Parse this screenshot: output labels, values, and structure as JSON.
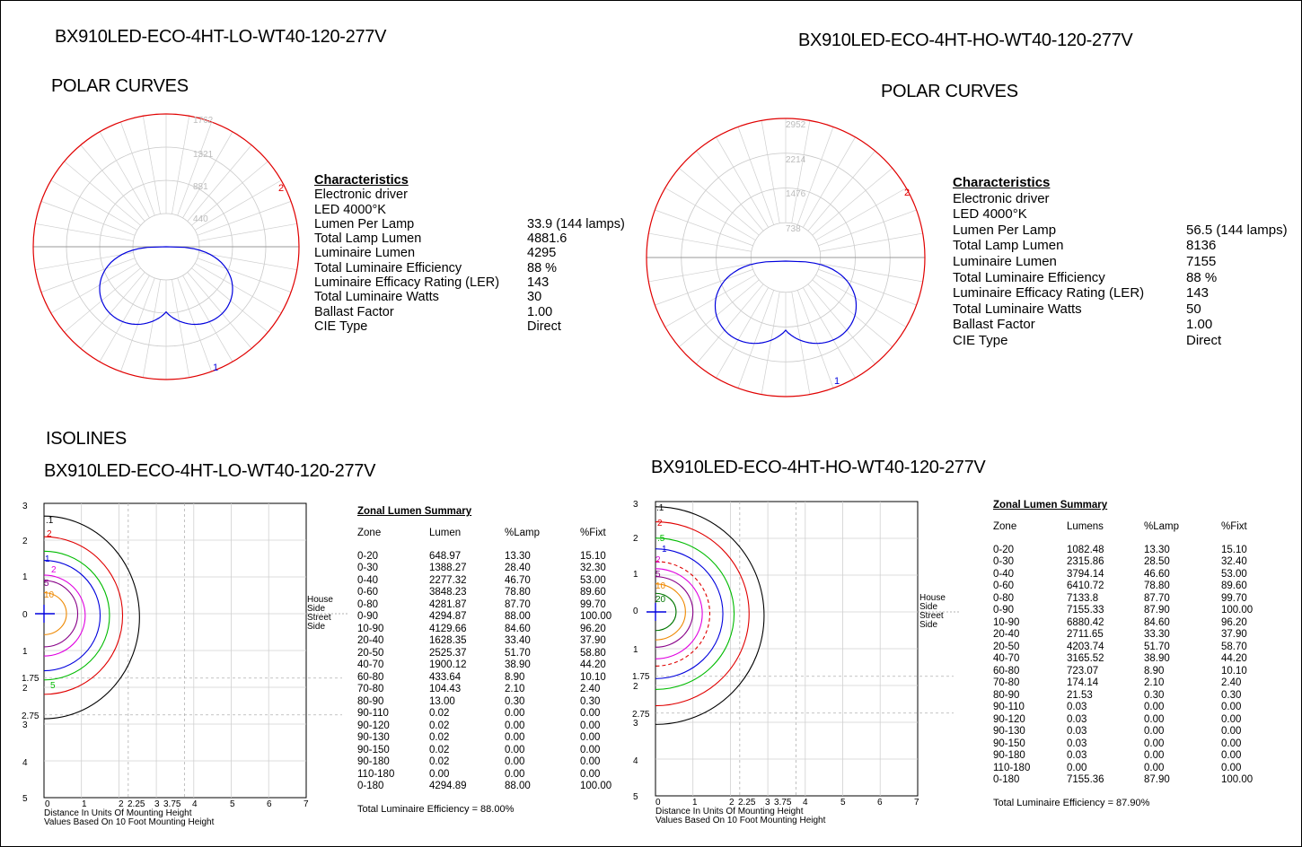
{
  "left": {
    "model": "BX910LED-ECO-4HT-LO-WT40-120-277V",
    "polar_heading": "POLAR CURVES",
    "polar_rings": [
      "1762",
      "1321",
      "881",
      "440"
    ],
    "polar_marks": [
      "2",
      "1"
    ],
    "characteristics": {
      "title": "Characteristics",
      "lines": [
        "Electronic driver",
        "LED 4000°K"
      ],
      "rows": [
        {
          "label": "Lumen Per Lamp",
          "value": "33.9 (144 lamps)"
        },
        {
          "label": "Total Lamp Lumen",
          "value": "4881.6"
        },
        {
          "label": "Luminaire Lumen",
          "value": "4295"
        },
        {
          "label": "Total Luminaire Efficiency",
          "value": "88 %"
        },
        {
          "label": "Luminaire Efficacy Rating (LER)",
          "value": "143"
        },
        {
          "label": "Total Luminaire Watts",
          "value": "30"
        },
        {
          "label": "Ballast Factor",
          "value": "1.00"
        },
        {
          "label": "CIE Type",
          "value": "Direct"
        }
      ]
    },
    "isolines_heading": "ISOLINES",
    "iso_model": "BX910LED-ECO-4HT-LO-WT40-120-277V",
    "iso_y_labels": [
      "3",
      "2",
      "1",
      "0",
      "1",
      "2",
      "3",
      "4",
      "5"
    ],
    "iso_y_extra": [
      "1.75",
      "2.75"
    ],
    "iso_x_labels": [
      "0",
      "1",
      "2",
      "2.25",
      "3",
      "3.75",
      "4",
      "5",
      "6",
      "7"
    ],
    "iso_contour_labels": [
      ".1",
      "2",
      "1",
      "2",
      "5",
      "10",
      "5"
    ],
    "iso_side": [
      "House",
      "Side",
      "Street",
      "Side"
    ],
    "iso_footer": [
      "Distance In Units Of Mounting Height",
      "Values Based On 10 Foot Mounting Height"
    ],
    "zonal": {
      "title": "Zonal Lumen Summary",
      "headers": [
        "Zone",
        "Lumen",
        "%Lamp",
        "%Fixt"
      ],
      "rows": [
        [
          "0-20",
          "648.97",
          "13.30",
          "15.10"
        ],
        [
          "0-30",
          "1388.27",
          "28.40",
          "32.30"
        ],
        [
          "0-40",
          "2277.32",
          "46.70",
          "53.00"
        ],
        [
          "0-60",
          "3848.23",
          "78.80",
          "89.60"
        ],
        [
          "0-80",
          "4281.87",
          "87.70",
          "99.70"
        ],
        [
          "0-90",
          "4294.87",
          "88.00",
          "100.00"
        ],
        [
          "10-90",
          "4129.66",
          "84.60",
          "96.20"
        ],
        [
          "20-40",
          "1628.35",
          "33.40",
          "37.90"
        ],
        [
          "20-50",
          "2525.37",
          "51.70",
          "58.80"
        ],
        [
          "40-70",
          "1900.12",
          "38.90",
          "44.20"
        ],
        [
          "60-80",
          "433.64",
          "8.90",
          "10.10"
        ],
        [
          "70-80",
          "104.43",
          "2.10",
          "2.40"
        ],
        [
          "80-90",
          "13.00",
          "0.30",
          "0.30"
        ],
        [
          "90-110",
          "0.02",
          "0.00",
          "0.00"
        ],
        [
          "90-120",
          "0.02",
          "0.00",
          "0.00"
        ],
        [
          "90-130",
          "0.02",
          "0.00",
          "0.00"
        ],
        [
          "90-150",
          "0.02",
          "0.00",
          "0.00"
        ],
        [
          "90-180",
          "0.02",
          "0.00",
          "0.00"
        ],
        [
          "110-180",
          "0.00",
          "0.00",
          "0.00"
        ],
        [
          "0-180",
          "4294.89",
          "88.00",
          "100.00"
        ]
      ],
      "total": "Total Luminaire Efficiency = 88.00%"
    }
  },
  "right": {
    "model": "BX910LED-ECO-4HT-HO-WT40-120-277V",
    "polar_heading": "POLAR CURVES",
    "polar_rings": [
      "2952",
      "2214",
      "1476",
      "738"
    ],
    "polar_marks": [
      "2",
      "1"
    ],
    "characteristics": {
      "title": "Characteristics",
      "lines": [
        "Electronic driver",
        "LED 4000°K"
      ],
      "rows": [
        {
          "label": "Lumen Per Lamp",
          "value": "56.5 (144 lamps)"
        },
        {
          "label": "Total Lamp Lumen",
          "value": "8136"
        },
        {
          "label": "Luminaire Lumen",
          "value": "7155"
        },
        {
          "label": "Total Luminaire Efficiency",
          "value": "88 %"
        },
        {
          "label": "Luminaire Efficacy Rating (LER)",
          "value": "143"
        },
        {
          "label": "Total Luminaire Watts",
          "value": "50"
        },
        {
          "label": "Ballast Factor",
          "value": "1.00"
        },
        {
          "label": "CIE Type",
          "value": "Direct"
        }
      ]
    },
    "iso_model": "BX910LED-ECO-4HT-HO-WT40-120-277V",
    "iso_y_labels": [
      "3",
      "2",
      "1",
      "0",
      "1",
      "2",
      "3",
      "4",
      "5"
    ],
    "iso_y_extra": [
      "1.75",
      "2.75"
    ],
    "iso_x_labels": [
      "0",
      "1",
      "2",
      "2.25",
      "3",
      "3.75",
      "4",
      "5",
      "6",
      "7"
    ],
    "iso_contour_labels": [
      ".1",
      "2",
      ".5",
      "1",
      "2",
      "5",
      "10",
      "20"
    ],
    "iso_side": [
      "House",
      "Side",
      "Street",
      "Side"
    ],
    "iso_footer": [
      "Distance In Units Of Mounting Height",
      "Values Based On 10 Foot Mounting Height"
    ],
    "zonal": {
      "title": "Zonal Lumen Summary",
      "headers": [
        "Zone",
        "Lumens",
        "%Lamp",
        "%Fixt"
      ],
      "rows": [
        [
          "0-20",
          "1082.48",
          "13.30",
          "15.10"
        ],
        [
          "0-30",
          "2315.86",
          "28.50",
          "32.40"
        ],
        [
          "0-40",
          "3794.14",
          "46.60",
          "53.00"
        ],
        [
          "0-60",
          "6410.72",
          "78.80",
          "89.60"
        ],
        [
          "0-80",
          "7133.8",
          "87.70",
          "99.70"
        ],
        [
          "0-90",
          "7155.33",
          "87.90",
          "100.00"
        ],
        [
          "10-90",
          "6880.42",
          "84.60",
          "96.20"
        ],
        [
          "20-40",
          "2711.65",
          "33.30",
          "37.90"
        ],
        [
          "20-50",
          "4203.74",
          "51.70",
          "58.70"
        ],
        [
          "40-70",
          "3165.52",
          "38.90",
          "44.20"
        ],
        [
          "60-80",
          "723.07",
          "8.90",
          "10.10"
        ],
        [
          "70-80",
          "174.14",
          "2.10",
          "2.40"
        ],
        [
          "80-90",
          "21.53",
          "0.30",
          "0.30"
        ],
        [
          "90-110",
          "0.03",
          "0.00",
          "0.00"
        ],
        [
          "90-120",
          "0.03",
          "0.00",
          "0.00"
        ],
        [
          "90-130",
          "0.03",
          "0.00",
          "0.00"
        ],
        [
          "90-150",
          "0.03",
          "0.00",
          "0.00"
        ],
        [
          "90-180",
          "0.03",
          "0.00",
          "0.00"
        ],
        [
          "110-180",
          "0.00",
          "0.00",
          "0.00"
        ],
        [
          "0-180",
          "7155.36",
          "87.90",
          "100.00"
        ]
      ],
      "total": "Total Luminaire Efficiency = 87.90%"
    }
  }
}
